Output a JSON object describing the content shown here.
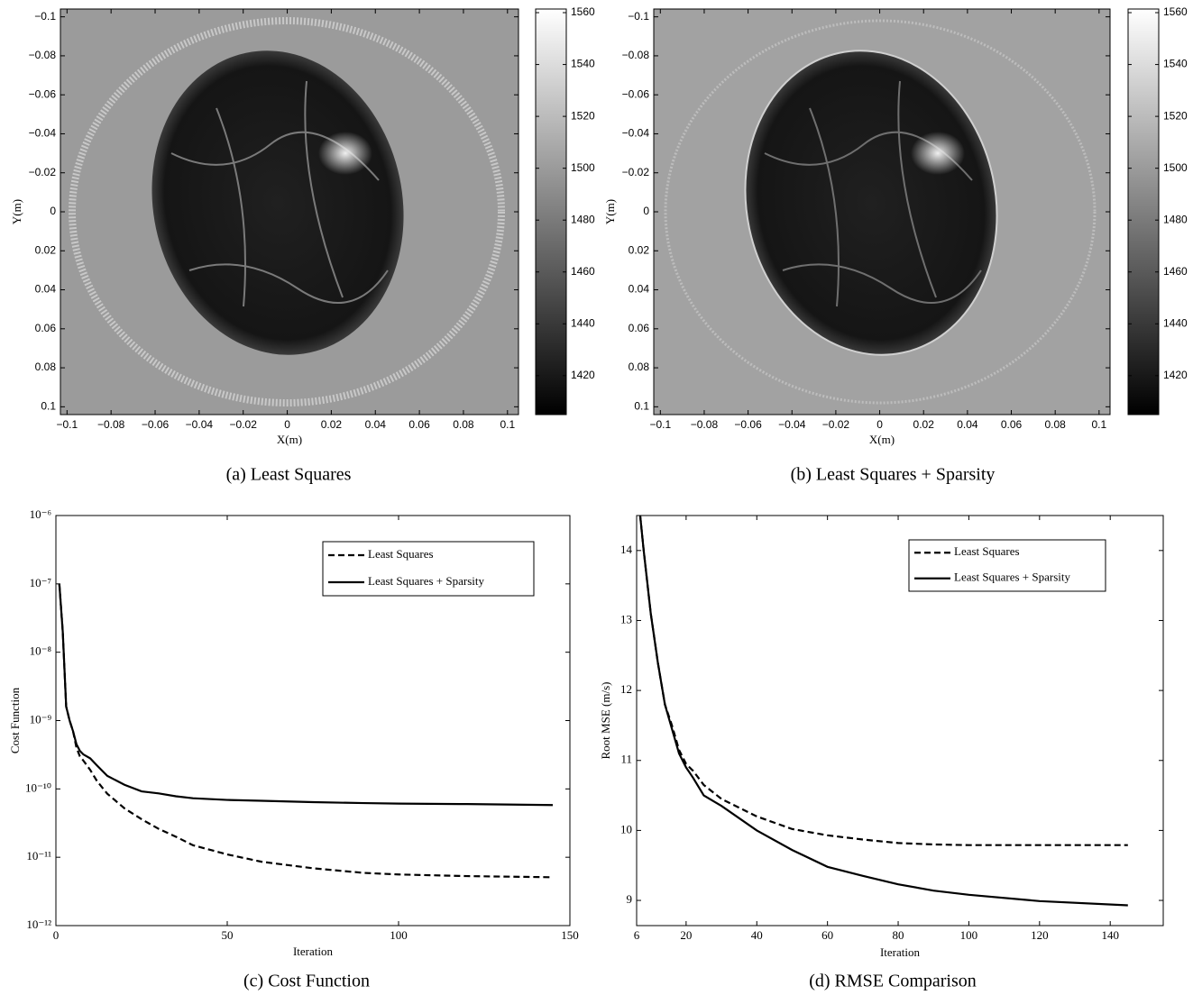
{
  "chart_data": [
    {
      "type": "image",
      "caption": "(a) Least Squares",
      "xlabel": "X(m)",
      "ylabel": "Y(m)",
      "xlim": [
        -0.103,
        0.105
      ],
      "ylim": [
        -0.104,
        0.104
      ],
      "y_inverted": true,
      "xticks": [
        {
          "value": -0.1,
          "label": "−0.1"
        },
        {
          "value": -0.08,
          "label": "−0.08"
        },
        {
          "value": -0.06,
          "label": "−0.06"
        },
        {
          "value": -0.04,
          "label": "−0.04"
        },
        {
          "value": -0.02,
          "label": "−0.02"
        },
        0,
        0.02,
        0.04,
        0.06,
        0.08,
        0.1
      ],
      "yticks": [
        {
          "value": -0.1,
          "label": "−0.1"
        },
        {
          "value": -0.08,
          "label": "−0.08"
        },
        {
          "value": -0.06,
          "label": "−0.06"
        },
        {
          "value": -0.04,
          "label": "−0.04"
        },
        {
          "value": -0.02,
          "label": "−0.02"
        },
        0,
        0.02,
        0.04,
        0.06,
        0.08,
        0.1
      ],
      "colormap": "gray",
      "colorbar": {
        "lim": [
          1405,
          1561.4
        ],
        "ticks": [
          1420,
          1440,
          1460,
          1480,
          1500,
          1520,
          1540,
          1560
        ]
      }
    },
    {
      "type": "image",
      "caption": "(b) Least Squares + Sparsity",
      "xlabel": "X(m)",
      "ylabel": "Y(m)",
      "xlim": [
        -0.103,
        0.105
      ],
      "ylim": [
        -0.104,
        0.104
      ],
      "y_inverted": true,
      "xticks": [
        {
          "value": -0.1,
          "label": "−0.1"
        },
        {
          "value": -0.08,
          "label": "−0.08"
        },
        {
          "value": -0.06,
          "label": "−0.06"
        },
        {
          "value": -0.04,
          "label": "−0.04"
        },
        {
          "value": -0.02,
          "label": "−0.02"
        },
        0,
        0.02,
        0.04,
        0.06,
        0.08,
        0.1
      ],
      "yticks": [
        {
          "value": -0.1,
          "label": "−0.1"
        },
        {
          "value": -0.08,
          "label": "−0.08"
        },
        {
          "value": -0.06,
          "label": "−0.06"
        },
        {
          "value": -0.04,
          "label": "−0.04"
        },
        {
          "value": -0.02,
          "label": "−0.02"
        },
        0,
        0.02,
        0.04,
        0.06,
        0.08,
        0.1
      ],
      "colormap": "gray",
      "colorbar": {
        "lim": [
          1405,
          1561.4
        ],
        "ticks": [
          1420,
          1440,
          1460,
          1480,
          1500,
          1520,
          1540,
          1560
        ]
      }
    },
    {
      "type": "line",
      "caption": "(c) Cost Function",
      "xlabel": "Iteration",
      "ylabel": "Cost Function",
      "log_y": true,
      "legend": "upper right",
      "xlim": [
        0,
        150
      ],
      "xticks": [
        0,
        50,
        100,
        150
      ],
      "ylim": [
        1e-12,
        1e-06
      ],
      "yticks": [
        {
          "value": 1e-12,
          "label": "10⁻¹²"
        },
        {
          "value": 1e-11,
          "label": "10⁻¹¹"
        },
        {
          "value": 1e-10,
          "label": "10⁻¹⁰"
        },
        {
          "value": 1e-09,
          "label": "10⁻⁹"
        },
        {
          "value": 1e-08,
          "label": "10⁻⁸"
        },
        {
          "value": 1e-07,
          "label": "10⁻⁷"
        },
        {
          "value": 1e-06,
          "label": "10⁻⁶"
        }
      ],
      "x": [
        1,
        2,
        3,
        4,
        5,
        6,
        7,
        8,
        10,
        12,
        15,
        20,
        25,
        30,
        35,
        40,
        50,
        60,
        75,
        90,
        100,
        120,
        145
      ],
      "series": [
        {
          "name": "Least Squares",
          "color": "#000000",
          "linestyle": "dashed",
          "values": [
            1e-07,
            2e-08,
            1.6e-09,
            1e-09,
            7e-10,
            4e-10,
            3e-10,
            2.6e-10,
            1.9e-10,
            1.3e-10,
            8.5e-11,
            5.2e-11,
            3.6e-11,
            2.6e-11,
            2e-11,
            1.5e-11,
            1.1e-11,
            8.6e-12,
            6.9e-12,
            5.9e-12,
            5.6e-12,
            5.3e-12,
            5.1e-12
          ]
        },
        {
          "name": "Least Squares + Sparsity",
          "color": "#000000",
          "linestyle": "solid",
          "values": [
            1e-07,
            2e-08,
            1.6e-09,
            1e-09,
            7e-10,
            4.5e-10,
            3.6e-10,
            3.2e-10,
            2.8e-10,
            2.2e-10,
            1.55e-10,
            1.15e-10,
            9.2e-11,
            8.6e-11,
            7.8e-11,
            7.3e-11,
            6.9e-11,
            6.7e-11,
            6.4e-11,
            6.2e-11,
            6.1e-11,
            6e-11,
            5.8e-11
          ]
        }
      ]
    },
    {
      "type": "line",
      "caption": "(d) RMSE Comparison",
      "xlabel": "Iteration",
      "ylabel": "Root MSE (m/s)",
      "legend": "upper right",
      "xlim": [
        6,
        155
      ],
      "xticks": [
        6,
        20,
        40,
        60,
        80,
        100,
        120,
        140
      ],
      "ylim": [
        8.64,
        14.5
      ],
      "yticks": [
        9,
        10,
        11,
        12,
        13,
        14
      ],
      "x": [
        7,
        8,
        10,
        12,
        14,
        16,
        18,
        20,
        22,
        25,
        30,
        40,
        50,
        60,
        70,
        80,
        90,
        100,
        120,
        145
      ],
      "series": [
        {
          "name": "Least Squares",
          "color": "#000000",
          "linestyle": "dashed",
          "values": [
            14.5,
            14.0,
            13.1,
            12.4,
            11.8,
            11.5,
            11.15,
            10.95,
            10.85,
            10.65,
            10.45,
            10.2,
            10.02,
            9.93,
            9.87,
            9.82,
            9.8,
            9.79,
            9.79,
            9.79
          ]
        },
        {
          "name": "Least Squares + Sparsity",
          "color": "#000000",
          "linestyle": "solid",
          "values": [
            14.5,
            14.0,
            13.1,
            12.4,
            11.8,
            11.45,
            11.1,
            10.9,
            10.75,
            10.5,
            10.35,
            10.0,
            9.72,
            9.48,
            9.35,
            9.23,
            9.14,
            9.08,
            8.99,
            8.93
          ]
        }
      ]
    }
  ]
}
